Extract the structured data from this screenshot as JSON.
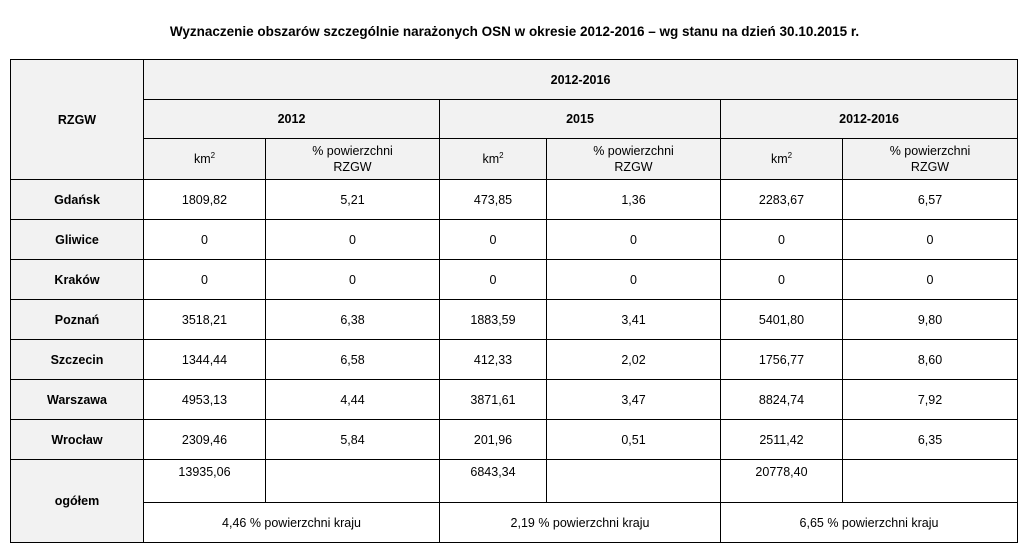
{
  "title": "Wyznaczenie obszarów szczególnie narażonych OSN w okresie 2012-2016  – wg stanu na dzień 30.10.2015 r.",
  "header": {
    "rzgw": "RZGW",
    "period": "2012-2016",
    "year_2012": "2012",
    "year_2015": "2015",
    "year_2012_2016": "2012-2016",
    "km_base": "km",
    "km_exp": "2",
    "pct_line1": "% powierzchni",
    "pct_line2": "RZGW"
  },
  "rows": [
    {
      "name": "Gdańsk",
      "km_2012": "1809,82",
      "pct_2012": "5,21",
      "km_2015": "473,85",
      "pct_2015": "1,36",
      "km_all": "2283,67",
      "pct_all": "6,57"
    },
    {
      "name": "Gliwice",
      "km_2012": "0",
      "pct_2012": "0",
      "km_2015": "0",
      "pct_2015": "0",
      "km_all": "0",
      "pct_all": "0"
    },
    {
      "name": "Kraków",
      "km_2012": "0",
      "pct_2012": "0",
      "km_2015": "0",
      "pct_2015": "0",
      "km_all": "0",
      "pct_all": "0"
    },
    {
      "name": "Poznań",
      "km_2012": "3518,21",
      "pct_2012": "6,38",
      "km_2015": "1883,59",
      "pct_2015": "3,41",
      "km_all": "5401,80",
      "pct_all": "9,80"
    },
    {
      "name": "Szczecin",
      "km_2012": "1344,44",
      "pct_2012": "6,58",
      "km_2015": "412,33",
      "pct_2015": "2,02",
      "km_all": "1756,77",
      "pct_all": "8,60"
    },
    {
      "name": "Warszawa",
      "km_2012": "4953,13",
      "pct_2012": "4,44",
      "km_2015": "3871,61",
      "pct_2015": "3,47",
      "km_all": "8824,74",
      "pct_all": "7,92"
    },
    {
      "name": "Wrocław",
      "km_2012": "2309,46",
      "pct_2012": "5,84",
      "km_2015": "201,96",
      "pct_2015": "0,51",
      "km_all": "2511,42",
      "pct_all": "6,35"
    }
  ],
  "total": {
    "label": "ogółem",
    "km_2012": "13935,06",
    "km_2015": "6843,34",
    "km_all": "20778,40",
    "share_2012": "4,46 % powierzchni kraju",
    "share_2015": "2,19 % powierzchni kraju",
    "share_all": "6,65 % powierzchni kraju"
  }
}
